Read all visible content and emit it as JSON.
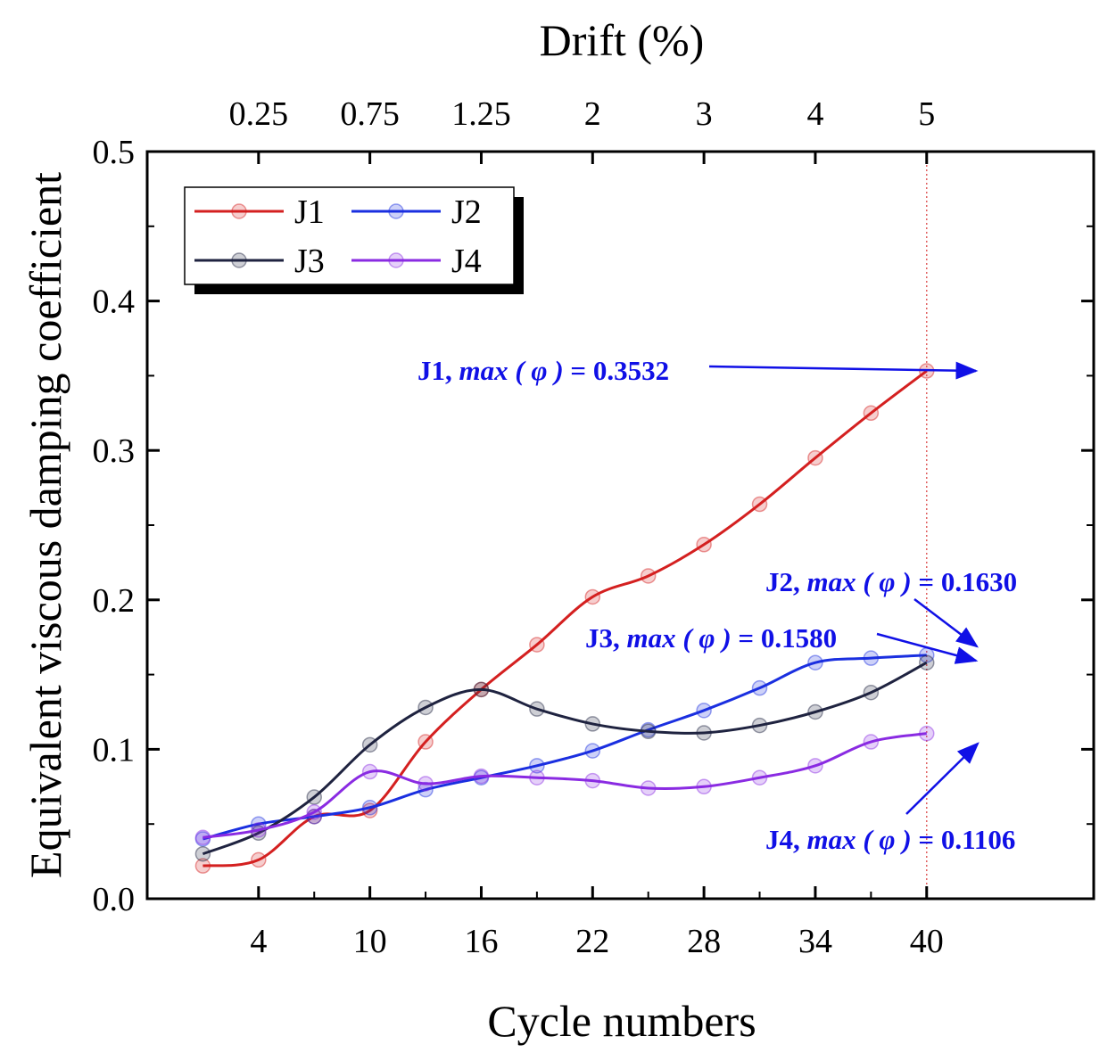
{
  "chart_data": {
    "type": "line",
    "title": "",
    "xlabel": "Cycle numbers",
    "ylabel": "Equivalent viscous damping coefficient",
    "x2label": "Drift (%)",
    "xlim": [
      -2,
      49
    ],
    "ylim": [
      0.0,
      0.5
    ],
    "x_ticks": [
      4,
      10,
      16,
      22,
      28,
      34,
      40
    ],
    "x_tick_labels": [
      "4",
      "10",
      "16",
      "22",
      "28",
      "34",
      "40"
    ],
    "y_ticks": [
      0.0,
      0.1,
      0.2,
      0.3,
      0.4,
      0.5
    ],
    "y_tick_labels": [
      "0.0",
      "0.1",
      "0.2",
      "0.3",
      "0.4",
      "0.5"
    ],
    "top_ticks": [
      4,
      10,
      16,
      22,
      28,
      34,
      40
    ],
    "top_tick_labels": [
      "0.25",
      "0.75",
      "1.25",
      "2",
      "3",
      "4",
      "5"
    ],
    "x": [
      1,
      4,
      7,
      10,
      13,
      16,
      19,
      22,
      25,
      28,
      31,
      34,
      37,
      40
    ],
    "series": [
      {
        "name": "J1",
        "color": "#d42020",
        "values": [
          0.022,
          0.026,
          0.055,
          0.059,
          0.105,
          0.14,
          0.17,
          0.202,
          0.216,
          0.237,
          0.264,
          0.295,
          0.325,
          0.3532
        ]
      },
      {
        "name": "J2",
        "color": "#1a2fe0",
        "values": [
          0.04,
          0.05,
          0.055,
          0.061,
          0.073,
          0.081,
          0.089,
          0.099,
          0.113,
          0.126,
          0.141,
          0.158,
          0.161,
          0.163
        ]
      },
      {
        "name": "J3",
        "color": "#1f2340",
        "values": [
          0.03,
          0.044,
          0.068,
          0.103,
          0.128,
          0.14,
          0.127,
          0.117,
          0.112,
          0.111,
          0.116,
          0.125,
          0.138,
          0.158
        ]
      },
      {
        "name": "J4",
        "color": "#8a2be2",
        "values": [
          0.041,
          0.046,
          0.058,
          0.085,
          0.077,
          0.082,
          0.081,
          0.079,
          0.074,
          0.075,
          0.081,
          0.089,
          0.105,
          0.1106
        ]
      }
    ],
    "reference_line_x": 40,
    "legend": {
      "placement": "top-left",
      "entries": [
        "J1",
        "J2",
        "J3",
        "J4"
      ]
    },
    "annotations": [
      {
        "series": "J1",
        "prefix": "J1, ",
        "func": "max ( φ )",
        "suffix": " = 0.3532",
        "target_x": 40,
        "target_y": 0.3532
      },
      {
        "series": "J2",
        "prefix": "J2, ",
        "func": "max ( φ )",
        "suffix": " = 0.1630",
        "target_x": 40,
        "target_y": 0.163
      },
      {
        "series": "J3",
        "prefix": "J3, ",
        "func": "max ( φ )",
        "suffix": " = 0.1580",
        "target_x": 40,
        "target_y": 0.158
      },
      {
        "series": "J4",
        "prefix": "J4, ",
        "func": "max ( φ )",
        "suffix": " = 0.1106",
        "target_x": 40,
        "target_y": 0.1106
      }
    ],
    "annotation_color": "#1010e6"
  }
}
